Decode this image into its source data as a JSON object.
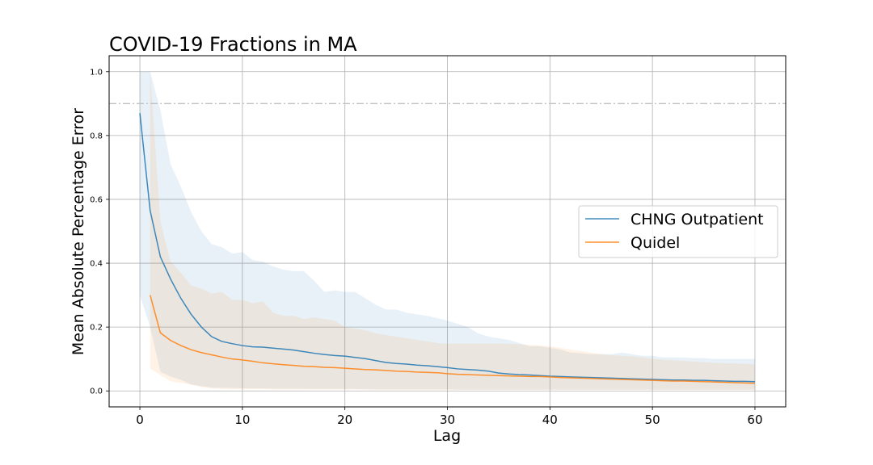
{
  "chart_data": {
    "type": "line",
    "title": "COVID-19 Fractions in MA",
    "xlabel": "Lag",
    "ylabel": "Mean Absolute Percentage Error",
    "xlim": [
      -3,
      63
    ],
    "ylim": [
      -0.05,
      1.05
    ],
    "x_ticks": [
      0,
      10,
      20,
      30,
      40,
      50,
      60
    ],
    "y_ticks": [
      0.0,
      0.2,
      0.4,
      0.6,
      0.8,
      1.0
    ],
    "grid": true,
    "legend_position": "center-right",
    "reference_line": {
      "y": 0.9,
      "style": "dash-dot",
      "color": "#c0c0c0"
    },
    "series": [
      {
        "name": "CHNG Outpatient",
        "color": "#1f77b4",
        "x": [
          0,
          1,
          2,
          3,
          4,
          5,
          6,
          7,
          8,
          9,
          10,
          11,
          12,
          13,
          14,
          15,
          16,
          17,
          18,
          19,
          20,
          21,
          22,
          23,
          24,
          25,
          26,
          27,
          28,
          29,
          30,
          31,
          32,
          33,
          34,
          35,
          36,
          37,
          38,
          39,
          40,
          41,
          42,
          43,
          44,
          45,
          46,
          47,
          48,
          49,
          50,
          51,
          52,
          53,
          54,
          55,
          56,
          57,
          58,
          59,
          60
        ],
        "values": [
          0.87,
          0.565,
          0.42,
          0.35,
          0.29,
          0.24,
          0.2,
          0.17,
          0.155,
          0.148,
          0.142,
          0.138,
          0.137,
          0.134,
          0.131,
          0.128,
          0.123,
          0.118,
          0.114,
          0.111,
          0.109,
          0.105,
          0.101,
          0.095,
          0.089,
          0.086,
          0.084,
          0.081,
          0.079,
          0.076,
          0.073,
          0.069,
          0.067,
          0.065,
          0.062,
          0.056,
          0.053,
          0.051,
          0.05,
          0.048,
          0.046,
          0.045,
          0.044,
          0.043,
          0.042,
          0.041,
          0.04,
          0.039,
          0.038,
          0.037,
          0.036,
          0.035,
          0.034,
          0.034,
          0.033,
          0.033,
          0.032,
          0.031,
          0.03,
          0.03,
          0.029
        ],
        "band_upper": [
          1.0,
          1.0,
          0.88,
          0.71,
          0.64,
          0.56,
          0.5,
          0.46,
          0.45,
          0.43,
          0.435,
          0.41,
          0.405,
          0.39,
          0.38,
          0.375,
          0.375,
          0.345,
          0.31,
          0.315,
          0.31,
          0.31,
          0.29,
          0.27,
          0.255,
          0.255,
          0.245,
          0.24,
          0.235,
          0.228,
          0.22,
          0.21,
          0.2,
          0.18,
          0.17,
          0.165,
          0.16,
          0.15,
          0.14,
          0.14,
          0.135,
          0.13,
          0.12,
          0.118,
          0.115,
          0.115,
          0.115,
          0.12,
          0.115,
          0.11,
          0.11,
          0.105,
          0.105,
          0.105,
          0.103,
          0.103,
          0.1,
          0.1,
          0.1,
          0.1,
          0.1
        ],
        "band_lower": [
          0.3,
          0.2,
          0.06,
          0.045,
          0.035,
          0.02,
          0.015,
          0.01,
          0.01,
          0.009,
          0.008,
          0.008,
          0.008,
          0.007,
          0.007,
          0.007,
          0.007,
          0.006,
          0.006,
          0.006,
          0.006,
          0.006,
          0.005,
          0.005,
          0.005,
          0.005,
          0.005,
          0.005,
          0.005,
          0.005,
          0.005,
          0.004,
          0.004,
          0.004,
          0.004,
          0.004,
          0.004,
          0.004,
          0.004,
          0.004,
          0.004,
          0.004,
          0.004,
          0.004,
          0.004,
          0.004,
          0.004,
          0.004,
          0.004,
          0.004,
          0.004,
          0.004,
          0.004,
          0.004,
          0.004,
          0.004,
          0.004,
          0.004,
          0.004,
          0.004,
          0.004
        ]
      },
      {
        "name": "Quidel",
        "color": "#ff7f0e",
        "x": [
          1,
          2,
          3,
          4,
          5,
          6,
          7,
          8,
          9,
          10,
          11,
          12,
          13,
          14,
          15,
          16,
          17,
          18,
          19,
          20,
          21,
          22,
          23,
          24,
          25,
          26,
          27,
          28,
          29,
          30,
          31,
          32,
          33,
          34,
          35,
          36,
          37,
          38,
          39,
          40,
          41,
          42,
          43,
          44,
          45,
          46,
          47,
          48,
          49,
          50,
          51,
          52,
          53,
          54,
          55,
          56,
          57,
          58,
          59,
          60
        ],
        "values": [
          0.3,
          0.182,
          0.158,
          0.142,
          0.129,
          0.12,
          0.113,
          0.106,
          0.1,
          0.097,
          0.093,
          0.088,
          0.085,
          0.082,
          0.08,
          0.077,
          0.076,
          0.074,
          0.073,
          0.071,
          0.069,
          0.067,
          0.066,
          0.064,
          0.062,
          0.061,
          0.059,
          0.058,
          0.057,
          0.054,
          0.052,
          0.051,
          0.05,
          0.049,
          0.048,
          0.047,
          0.046,
          0.045,
          0.045,
          0.044,
          0.042,
          0.041,
          0.04,
          0.039,
          0.038,
          0.037,
          0.036,
          0.035,
          0.034,
          0.033,
          0.032,
          0.031,
          0.031,
          0.03,
          0.029,
          0.028,
          0.027,
          0.026,
          0.025,
          0.024
        ],
        "band_upper": [
          1.0,
          0.53,
          0.405,
          0.37,
          0.33,
          0.32,
          0.305,
          0.31,
          0.285,
          0.285,
          0.275,
          0.28,
          0.245,
          0.235,
          0.235,
          0.225,
          0.23,
          0.225,
          0.22,
          0.2,
          0.195,
          0.19,
          0.18,
          0.175,
          0.17,
          0.165,
          0.16,
          0.155,
          0.15,
          0.148,
          0.148,
          0.148,
          0.148,
          0.148,
          0.148,
          0.148,
          0.146,
          0.144,
          0.142,
          0.14,
          0.135,
          0.13,
          0.125,
          0.12,
          0.115,
          0.112,
          0.11,
          0.108,
          0.105,
          0.1,
          0.098,
          0.096,
          0.094,
          0.092,
          0.09,
          0.088,
          0.087,
          0.086,
          0.085,
          0.083
        ],
        "band_lower": [
          0.07,
          0.05,
          0.03,
          0.025,
          0.02,
          0.012,
          0.008,
          0.006,
          0.005,
          0.005,
          0.005,
          0.005,
          0.004,
          0.004,
          0.004,
          0.004,
          0.004,
          0.004,
          0.004,
          0.004,
          0.004,
          0.004,
          0.003,
          0.003,
          0.003,
          0.003,
          0.003,
          0.003,
          0.003,
          0.003,
          0.003,
          0.003,
          0.003,
          0.003,
          0.003,
          0.003,
          0.003,
          0.003,
          0.003,
          0.003,
          0.003,
          0.003,
          0.003,
          0.003,
          0.003,
          0.003,
          0.003,
          0.003,
          0.003,
          0.003,
          0.003,
          0.003,
          0.003,
          0.003,
          0.003,
          0.003,
          0.003,
          0.003,
          0.003,
          0.003
        ]
      }
    ]
  }
}
